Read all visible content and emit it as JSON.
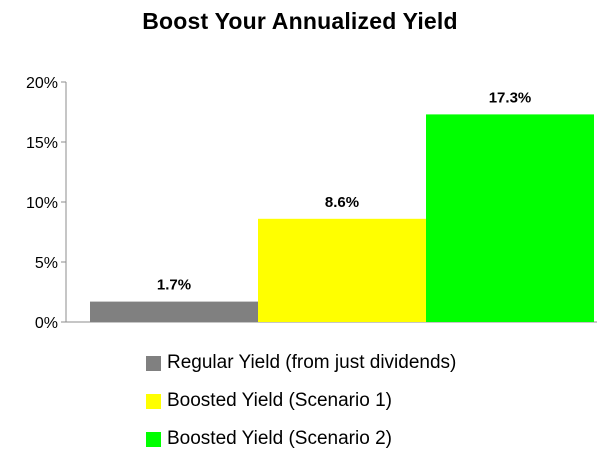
{
  "chart_data": {
    "type": "bar",
    "title": "Boost Your Annualized Yield",
    "categories": [
      "Regular Yield (from just dividends)",
      "Boosted Yield (Scenario 1)",
      "Boosted Yield (Scenario 2)"
    ],
    "values": [
      1.7,
      8.6,
      17.3
    ],
    "data_labels": [
      "1.7%",
      "8.6%",
      "17.3%"
    ],
    "colors": [
      "#808080",
      "#ffff00",
      "#00ff00"
    ],
    "ylim": [
      0,
      20
    ],
    "yticks": [
      0,
      5,
      10,
      15,
      20
    ],
    "ytick_labels": [
      "0%",
      "5%",
      "10%",
      "15%",
      "20%"
    ],
    "xlabel": "",
    "ylabel": "",
    "grid": false,
    "legend_position": "bottom"
  }
}
